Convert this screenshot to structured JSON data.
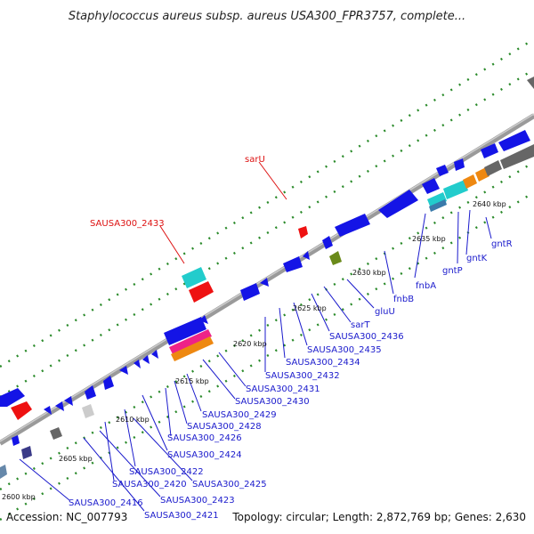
{
  "title": "Staphylococcus aureus subsp. aureus USA300_FPR3757, complete...",
  "accession": "Accession: NC_007793",
  "stats": "Topology: circular; Length: 2,872,769 bp; Genes: 2,630",
  "colors": {
    "backbone": "#888888",
    "gene_blue": "#1414e6",
    "gene_red": "#ee1111",
    "gene_cyan": "#22cccc",
    "gene_gray": "#666666",
    "gene_olive": "#6a8a1a",
    "gene_orange": "#ee8811",
    "gene_magenta": "#ee2288",
    "label_blue": "#1a1acc",
    "label_red": "#dd1111",
    "dots": "#2a8a2a"
  },
  "ticks": [
    "2600 kbp",
    "2605 kbp",
    "2610 kbp",
    "2615 kbp",
    "2620 kbp",
    "2625 kbp",
    "2630 kbp",
    "2635 kbp",
    "2640 kbp"
  ],
  "labels_red": [
    "sarU",
    "SAUSA300_2433"
  ],
  "labels_blue": [
    "gntR",
    "gntK",
    "gntP",
    "fnbA",
    "fnbB",
    "gluU",
    "sarT",
    "SAUSA300_2436",
    "SAUSA300_2435",
    "SAUSA300_2434",
    "SAUSA300_2432",
    "SAUSA300_2431",
    "SAUSA300_2430",
    "SAUSA300_2429",
    "SAUSA300_2428",
    "SAUSA300_2426",
    "SAUSA300_2424",
    "SAUSA300_2422",
    "SAUSA300_2425",
    "SAUSA300_2420",
    "SAUSA300_2423",
    "SAUSA300_2416",
    "SAUSA300_2421"
  ]
}
